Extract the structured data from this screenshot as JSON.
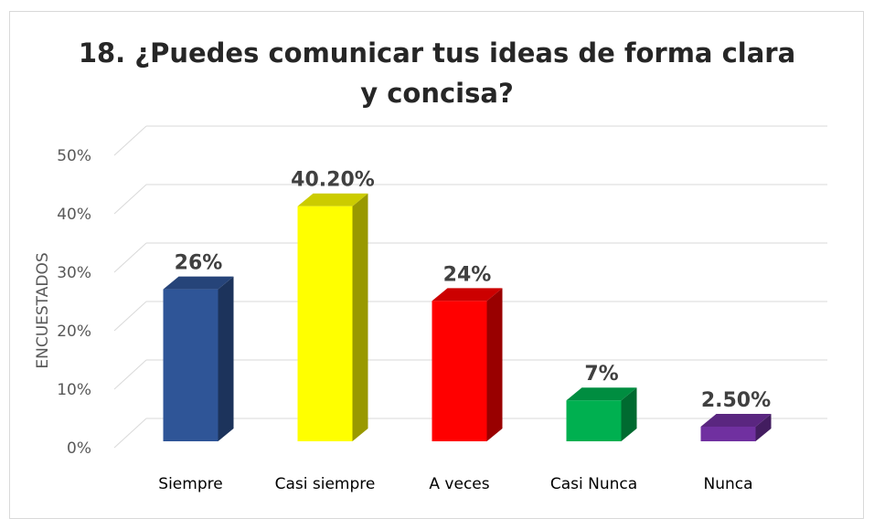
{
  "chart_data": {
    "type": "bar3d",
    "title": "18. ¿Puedes comunicar tus ideas de forma clara y concisa?",
    "ylabel": "ENCUESTADOS",
    "categories": [
      "Siempre",
      "Casi siempre",
      "A veces",
      "Casi Nunca",
      "Nunca"
    ],
    "values": [
      26,
      40.2,
      24,
      7,
      2.5
    ],
    "value_labels": [
      "26%",
      "40.20%",
      "24%",
      "7%",
      "2.50%"
    ],
    "colors": [
      "#2f5597",
      "#ffff00",
      "#ff0000",
      "#00b050",
      "#7030a0"
    ],
    "ylim": [
      0,
      50
    ],
    "yticks": [
      {
        "value": 0,
        "label": "0%"
      },
      {
        "value": 10,
        "label": "10%"
      },
      {
        "value": 20,
        "label": "20%"
      },
      {
        "value": 30,
        "label": "30%"
      },
      {
        "value": 40,
        "label": "40%"
      },
      {
        "value": 50,
        "label": "50%"
      }
    ],
    "grid": true
  }
}
